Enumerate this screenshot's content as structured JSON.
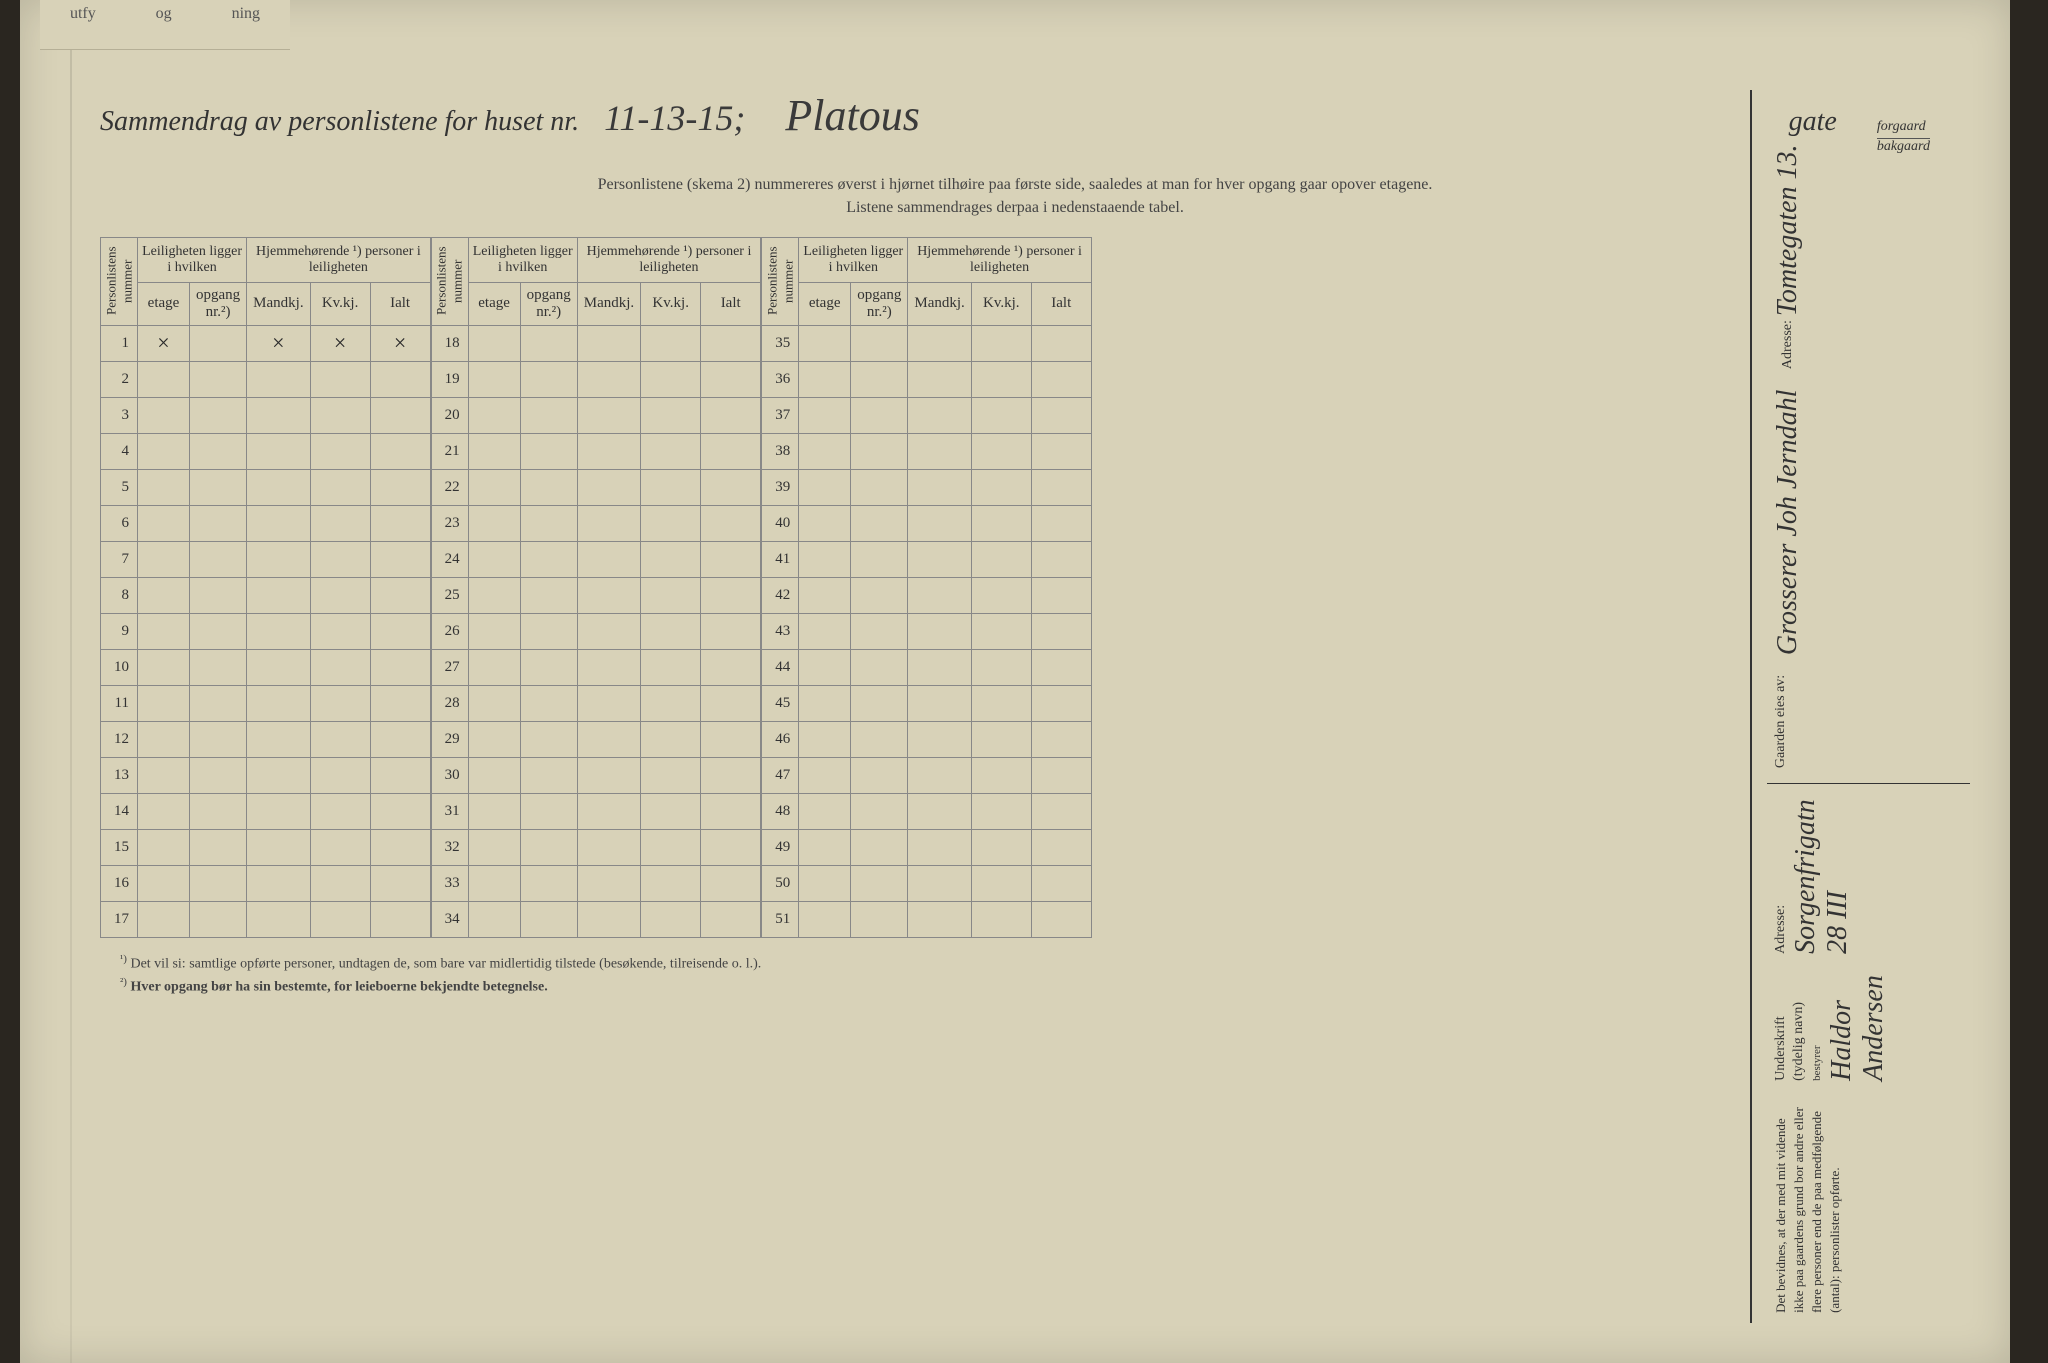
{
  "background_color": "#2a2620",
  "page_color": "#d8d2b8",
  "text_color": "#333333",
  "border_color": "#888888",
  "top_tab": {
    "text1": "utfy",
    "text2": "og",
    "text3": "ning"
  },
  "title": {
    "prefix": "Sammendrag av personlistene for huset nr.",
    "house_nr": "11-13-15;",
    "street_name": "Platous",
    "gate_label": "gate",
    "option1": "forgaard",
    "option2": "bakgaard"
  },
  "subtitle1": "Personlistene (skema 2) nummereres øverst i hjørnet tilhøire paa første side, saaledes at man for hver opgang gaar opover etagene.",
  "subtitle2": "Listene sammendrages derpaa i nedenstaaende tabel.",
  "headers": {
    "personlistens_nummer": "Personlistens nummer",
    "leiligheten": "Leiligheten ligger i hvilken",
    "hjemmehorende": "Hjemmehørende ¹) personer i leiligheten",
    "etage": "etage",
    "opgang": "opgang nr.²)",
    "mandkj": "Mandkj.",
    "kvkj": "Kv.kj.",
    "ialt": "Ialt"
  },
  "row1_mark": "×",
  "section1_rows": [
    1,
    2,
    3,
    4,
    5,
    6,
    7,
    8,
    9,
    10,
    11,
    12,
    13,
    14,
    15,
    16,
    17
  ],
  "section2_rows": [
    18,
    19,
    20,
    21,
    22,
    23,
    24,
    25,
    26,
    27,
    28,
    29,
    30,
    31,
    32,
    33,
    34
  ],
  "section3_rows": [
    35,
    36,
    37,
    38,
    39,
    40,
    41,
    42,
    43,
    44,
    45,
    46,
    47,
    48,
    49,
    50,
    51
  ],
  "footnote1_marker": "¹)",
  "footnote1_text": "Det vil si: samtlige opførte personer, undtagen de, som bare var midlertidig tilstede (besøkende, tilreisende o. l.).",
  "footnote2_marker": "²)",
  "footnote2_text": "Hver opgang bør ha sin bestemte, for leieboerne bekjendte betegnelse.",
  "sidebar": {
    "gaarden_label": "Gaarden eies av:",
    "owner_name": "Grosserer Joh Jerndahl",
    "owner_address_label": "Adresse:",
    "owner_address": "Tomtegaten 13.",
    "declaration": "Det bevidnes, at der med mit vidende ikke paa gaardens grund bor andre eller flere personer end de paa medfølgende (antal): personlister opførte.",
    "underskrift_label": "Underskrift (tydelig navn)",
    "bestyrer_label": "bestyrer",
    "signature": "Haldor Andersen",
    "sig_address_label": "Adresse:",
    "sig_address": "Sorgenfrigatn 28 III"
  }
}
